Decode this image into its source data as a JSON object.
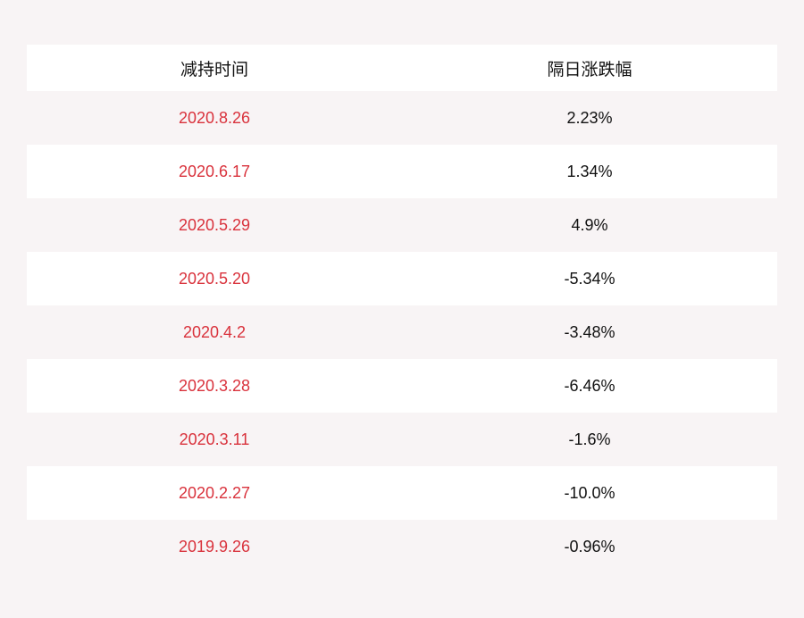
{
  "table": {
    "headers": [
      "减持时间",
      "隔日涨跌幅"
    ],
    "rows": [
      {
        "date": "2020.8.26",
        "change": "2.23%"
      },
      {
        "date": "2020.6.17",
        "change": "1.34%"
      },
      {
        "date": "2020.5.29",
        "change": "4.9%"
      },
      {
        "date": "2020.5.20",
        "change": "-5.34%"
      },
      {
        "date": "2020.4.2",
        "change": "-3.48%"
      },
      {
        "date": "2020.3.28",
        "change": "-6.46%"
      },
      {
        "date": "2020.3.11",
        "change": "-1.6%"
      },
      {
        "date": "2020.2.27",
        "change": "-10.0%"
      },
      {
        "date": "2019.9.26",
        "change": "-0.96%"
      }
    ]
  },
  "colors": {
    "background": "#f8f4f5",
    "date_text": "#d9323c",
    "value_text": "#111111"
  },
  "chart_data": {
    "type": "table",
    "columns": [
      "减持时间",
      "隔日涨跌幅"
    ],
    "rows": [
      [
        "2020.8.26",
        "2.23%"
      ],
      [
        "2020.6.17",
        "1.34%"
      ],
      [
        "2020.5.29",
        "4.9%"
      ],
      [
        "2020.5.20",
        "-5.34%"
      ],
      [
        "2020.4.2",
        "-3.48%"
      ],
      [
        "2020.3.28",
        "-6.46%"
      ],
      [
        "2020.3.11",
        "-1.6%"
      ],
      [
        "2020.2.27",
        "-10.0%"
      ],
      [
        "2019.9.26",
        "-0.96%"
      ]
    ]
  }
}
